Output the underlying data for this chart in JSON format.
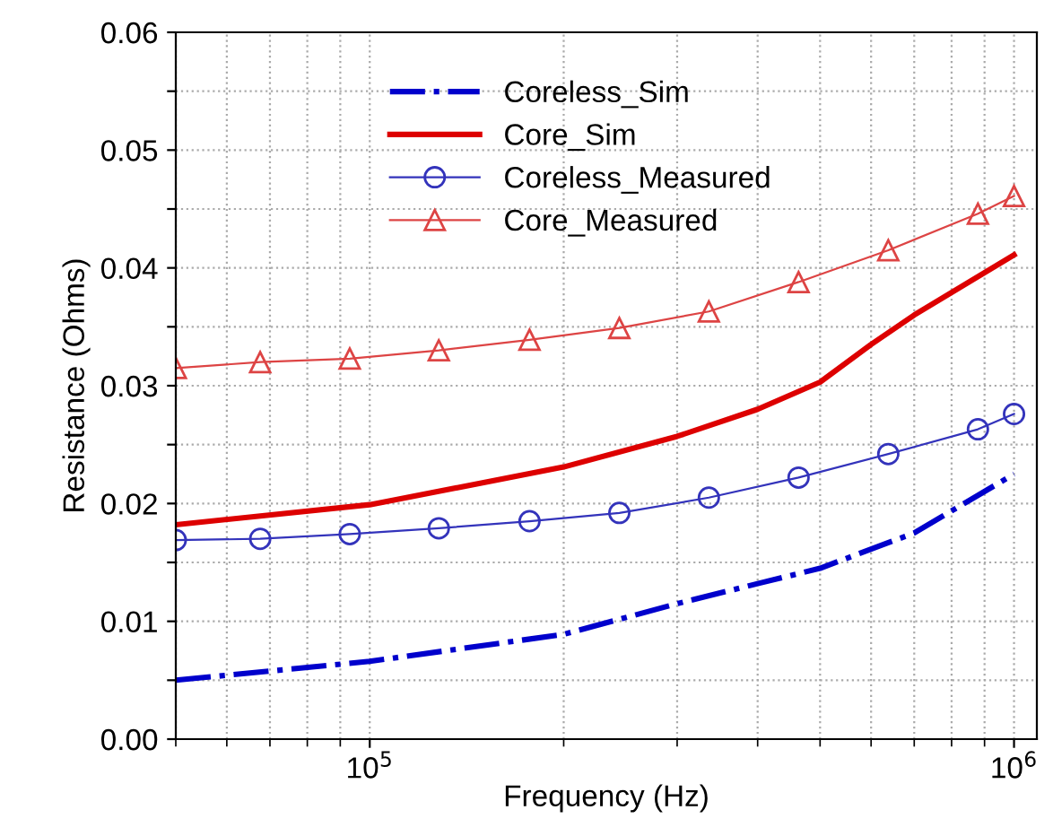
{
  "chart_data": {
    "type": "line",
    "xlabel": "Frequency (Hz)",
    "ylabel": "Resistance (Ohms)",
    "log": "x",
    "xlim": [
      50000,
      1085000
    ],
    "xticks": [
      {
        "value": 100000,
        "label": "10$^{5}$"
      },
      {
        "value": 1000000,
        "label": "10$^{6}$"
      }
    ],
    "ylim": [
      0,
      0.06
    ],
    "yticks": [
      {
        "value": 0,
        "label": "0.00"
      },
      {
        "value": 0.005,
        "label": null
      },
      {
        "value": 0.01,
        "label": "0.01"
      },
      {
        "value": 0.015,
        "label": null
      },
      {
        "value": 0.02,
        "label": "0.02"
      },
      {
        "value": 0.025,
        "label": null
      },
      {
        "value": 0.03,
        "label": "0.03"
      },
      {
        "value": 0.035,
        "label": null
      },
      {
        "value": 0.04,
        "label": "0.04"
      },
      {
        "value": 0.045,
        "label": null
      },
      {
        "value": 0.05,
        "label": "0.05"
      },
      {
        "value": 0.055,
        "label": null
      },
      {
        "value": 0.06,
        "label": "0.06"
      }
    ],
    "grid": true,
    "legend": "top",
    "series": [
      {
        "name": "Coreless_Sim",
        "color": "#0000cc",
        "line_style": "dashdot",
        "marker": "none",
        "x": [
          50000,
          100000,
          200000,
          300000,
          400000,
          500000,
          700000,
          1000000
        ],
        "values": [
          0.005,
          0.0066,
          0.0089,
          0.0115,
          0.0132,
          0.0145,
          0.0175,
          0.0225
        ]
      },
      {
        "name": "Core_Sim",
        "color": "#dd0000",
        "line_style": "solid",
        "marker": "none",
        "x": [
          50000,
          100000,
          200000,
          300000,
          400000,
          500000,
          600000,
          700000,
          1000000
        ],
        "values": [
          0.0182,
          0.0199,
          0.0231,
          0.0257,
          0.028,
          0.0303,
          0.0335,
          0.036,
          0.0411
        ]
      },
      {
        "name": "Coreless_Measured",
        "color": "#3333bb",
        "line_style": "solid",
        "marker": "circle",
        "x": [
          50000,
          67600,
          93100,
          128000,
          177000,
          244000,
          336000,
          463000,
          638000,
          879000,
          1000000
        ],
        "values": [
          0.0169,
          0.017,
          0.0174,
          0.0179,
          0.0185,
          0.0192,
          0.0205,
          0.0222,
          0.0242,
          0.0263,
          0.0276
        ]
      },
      {
        "name": "Core_Measured",
        "color": "#dd4444",
        "line_style": "solid",
        "marker": "triangle",
        "x": [
          50000,
          67600,
          93100,
          128000,
          177000,
          244000,
          336000,
          463000,
          638000,
          879000,
          1000000
        ],
        "values": [
          0.0315,
          0.032,
          0.0323,
          0.033,
          0.0339,
          0.0349,
          0.0363,
          0.0388,
          0.0415,
          0.0446,
          0.0461
        ]
      }
    ]
  }
}
